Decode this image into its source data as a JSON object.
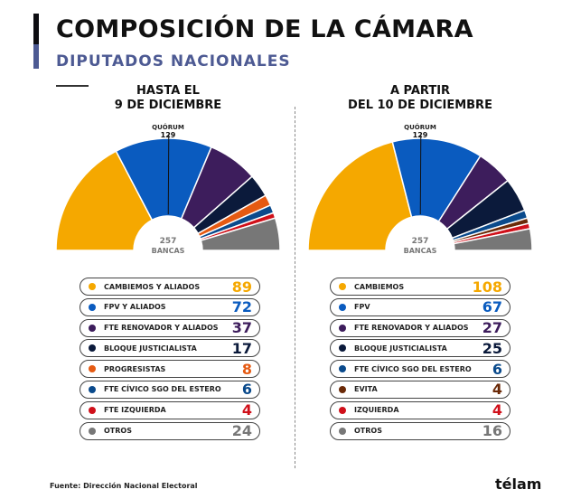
{
  "header": {
    "title": "COMPOSICIÓN DE LA CÁMARA",
    "subtitle": "DIPUTADOS NACIONALES"
  },
  "chart_data": [
    {
      "type": "pie",
      "shape": "half-donut",
      "heading_line1": "HASTA EL",
      "heading_line2": "9 DE DICIEMBRE",
      "quorum_label": "QUÓRUM",
      "quorum_value": "129",
      "total_value": "257",
      "total_label": "BANCAS",
      "categories": [
        "CAMBIEMOS Y ALIADOS",
        "FPV Y ALIADOS",
        "FTE RENOVADOR Y ALIADOS",
        "BLOQUE JUSTICIALISTA",
        "PROGRESISTAS",
        "FTE CÍVICO SGO DEL ESTERO",
        "FTE IZQUIERDA",
        "OTROS"
      ],
      "values": [
        89,
        72,
        37,
        17,
        8,
        6,
        4,
        24
      ],
      "colors": [
        "#f5a800",
        "#0a5bbf",
        "#3d1d5c",
        "#0b1a3b",
        "#e55a12",
        "#0a4a8c",
        "#d0101a",
        "#777777"
      ]
    },
    {
      "type": "pie",
      "shape": "half-donut",
      "heading_line1": "A PARTIR",
      "heading_line2": "DEL 10 DE DICIEMBRE",
      "quorum_label": "QUÓRUM",
      "quorum_value": "129",
      "total_value": "257",
      "total_label": "BANCAS",
      "categories": [
        "CAMBIEMOS",
        "FPV",
        "FTE RENOVADOR Y ALIADOS",
        "BLOQUE JUSTICIALISTA",
        "FTE CÍVICO SGO DEL ESTERO",
        "EVITA",
        "IZQUIERDA",
        "OTROS"
      ],
      "values": [
        108,
        67,
        27,
        25,
        6,
        4,
        4,
        16
      ],
      "colors": [
        "#f5a800",
        "#0a5bbf",
        "#3d1d5c",
        "#0b1a3b",
        "#0a4a8c",
        "#6b2a08",
        "#d0101a",
        "#777777"
      ]
    }
  ],
  "footer": {
    "source": "Fuente: Dirección Nacional Electoral",
    "logo": "télam"
  }
}
